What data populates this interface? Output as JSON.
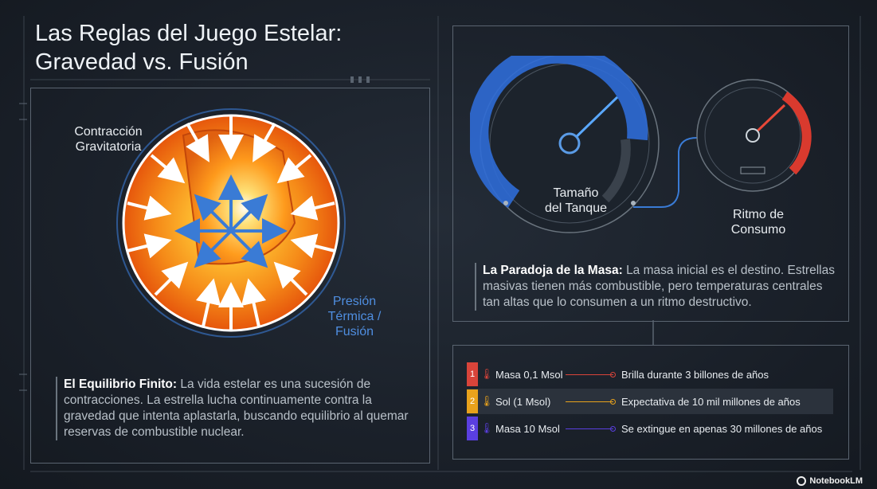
{
  "title": {
    "line1": "Las Reglas del Juego Estelar:",
    "line2": "Gravedad vs. Fusión"
  },
  "left_panel": {
    "label_gravity_line1": "Contracción",
    "label_gravity_line2": "Gravitatoria",
    "label_pressure_line1": "Presión",
    "label_pressure_line2": "Térmica /",
    "label_pressure_line3": "Fusión",
    "heading": "El Equilibrio Finito:",
    "body": "La vida estelar es una sucesión de contracciones. La estrella lucha continuamente contra la gravedad que intenta aplastarla, buscando equilibrio al quemar reservas de combustible nuclear."
  },
  "right_panel": {
    "gauge_tank_line1": "Tamaño",
    "gauge_tank_line2": "del Tanque",
    "gauge_rate_line1": "Ritmo de",
    "gauge_rate_line2": "Consumo",
    "heading": "La Paradoja de la Masa:",
    "body": "La masa inicial es el destino. Estrellas masivas tienen más combustible, pero temperaturas centrales tan altas que lo consumen a un ritmo destructivo."
  },
  "table": {
    "rows": [
      {
        "num": "1",
        "name": "Masa 0,1 Msol",
        "desc": "Brilla durante 3 billones de años",
        "color": "#d9443a"
      },
      {
        "num": "2",
        "name": "Sol (1 Msol)",
        "desc": "Expectativa de 10 mil millones de años",
        "color": "#e8a21c"
      },
      {
        "num": "3",
        "name": "Masa 10 Msol",
        "desc": "Se extingue en apenas 30 millones de años",
        "color": "#5a3fe0"
      }
    ]
  },
  "brand": {
    "name": "NotebookLM"
  },
  "colors": {
    "accent_blue": "#3a7bd5",
    "accent_red": "#d93a2e",
    "star_orange": "#f08a1c",
    "panel_border": "#5a6470"
  }
}
